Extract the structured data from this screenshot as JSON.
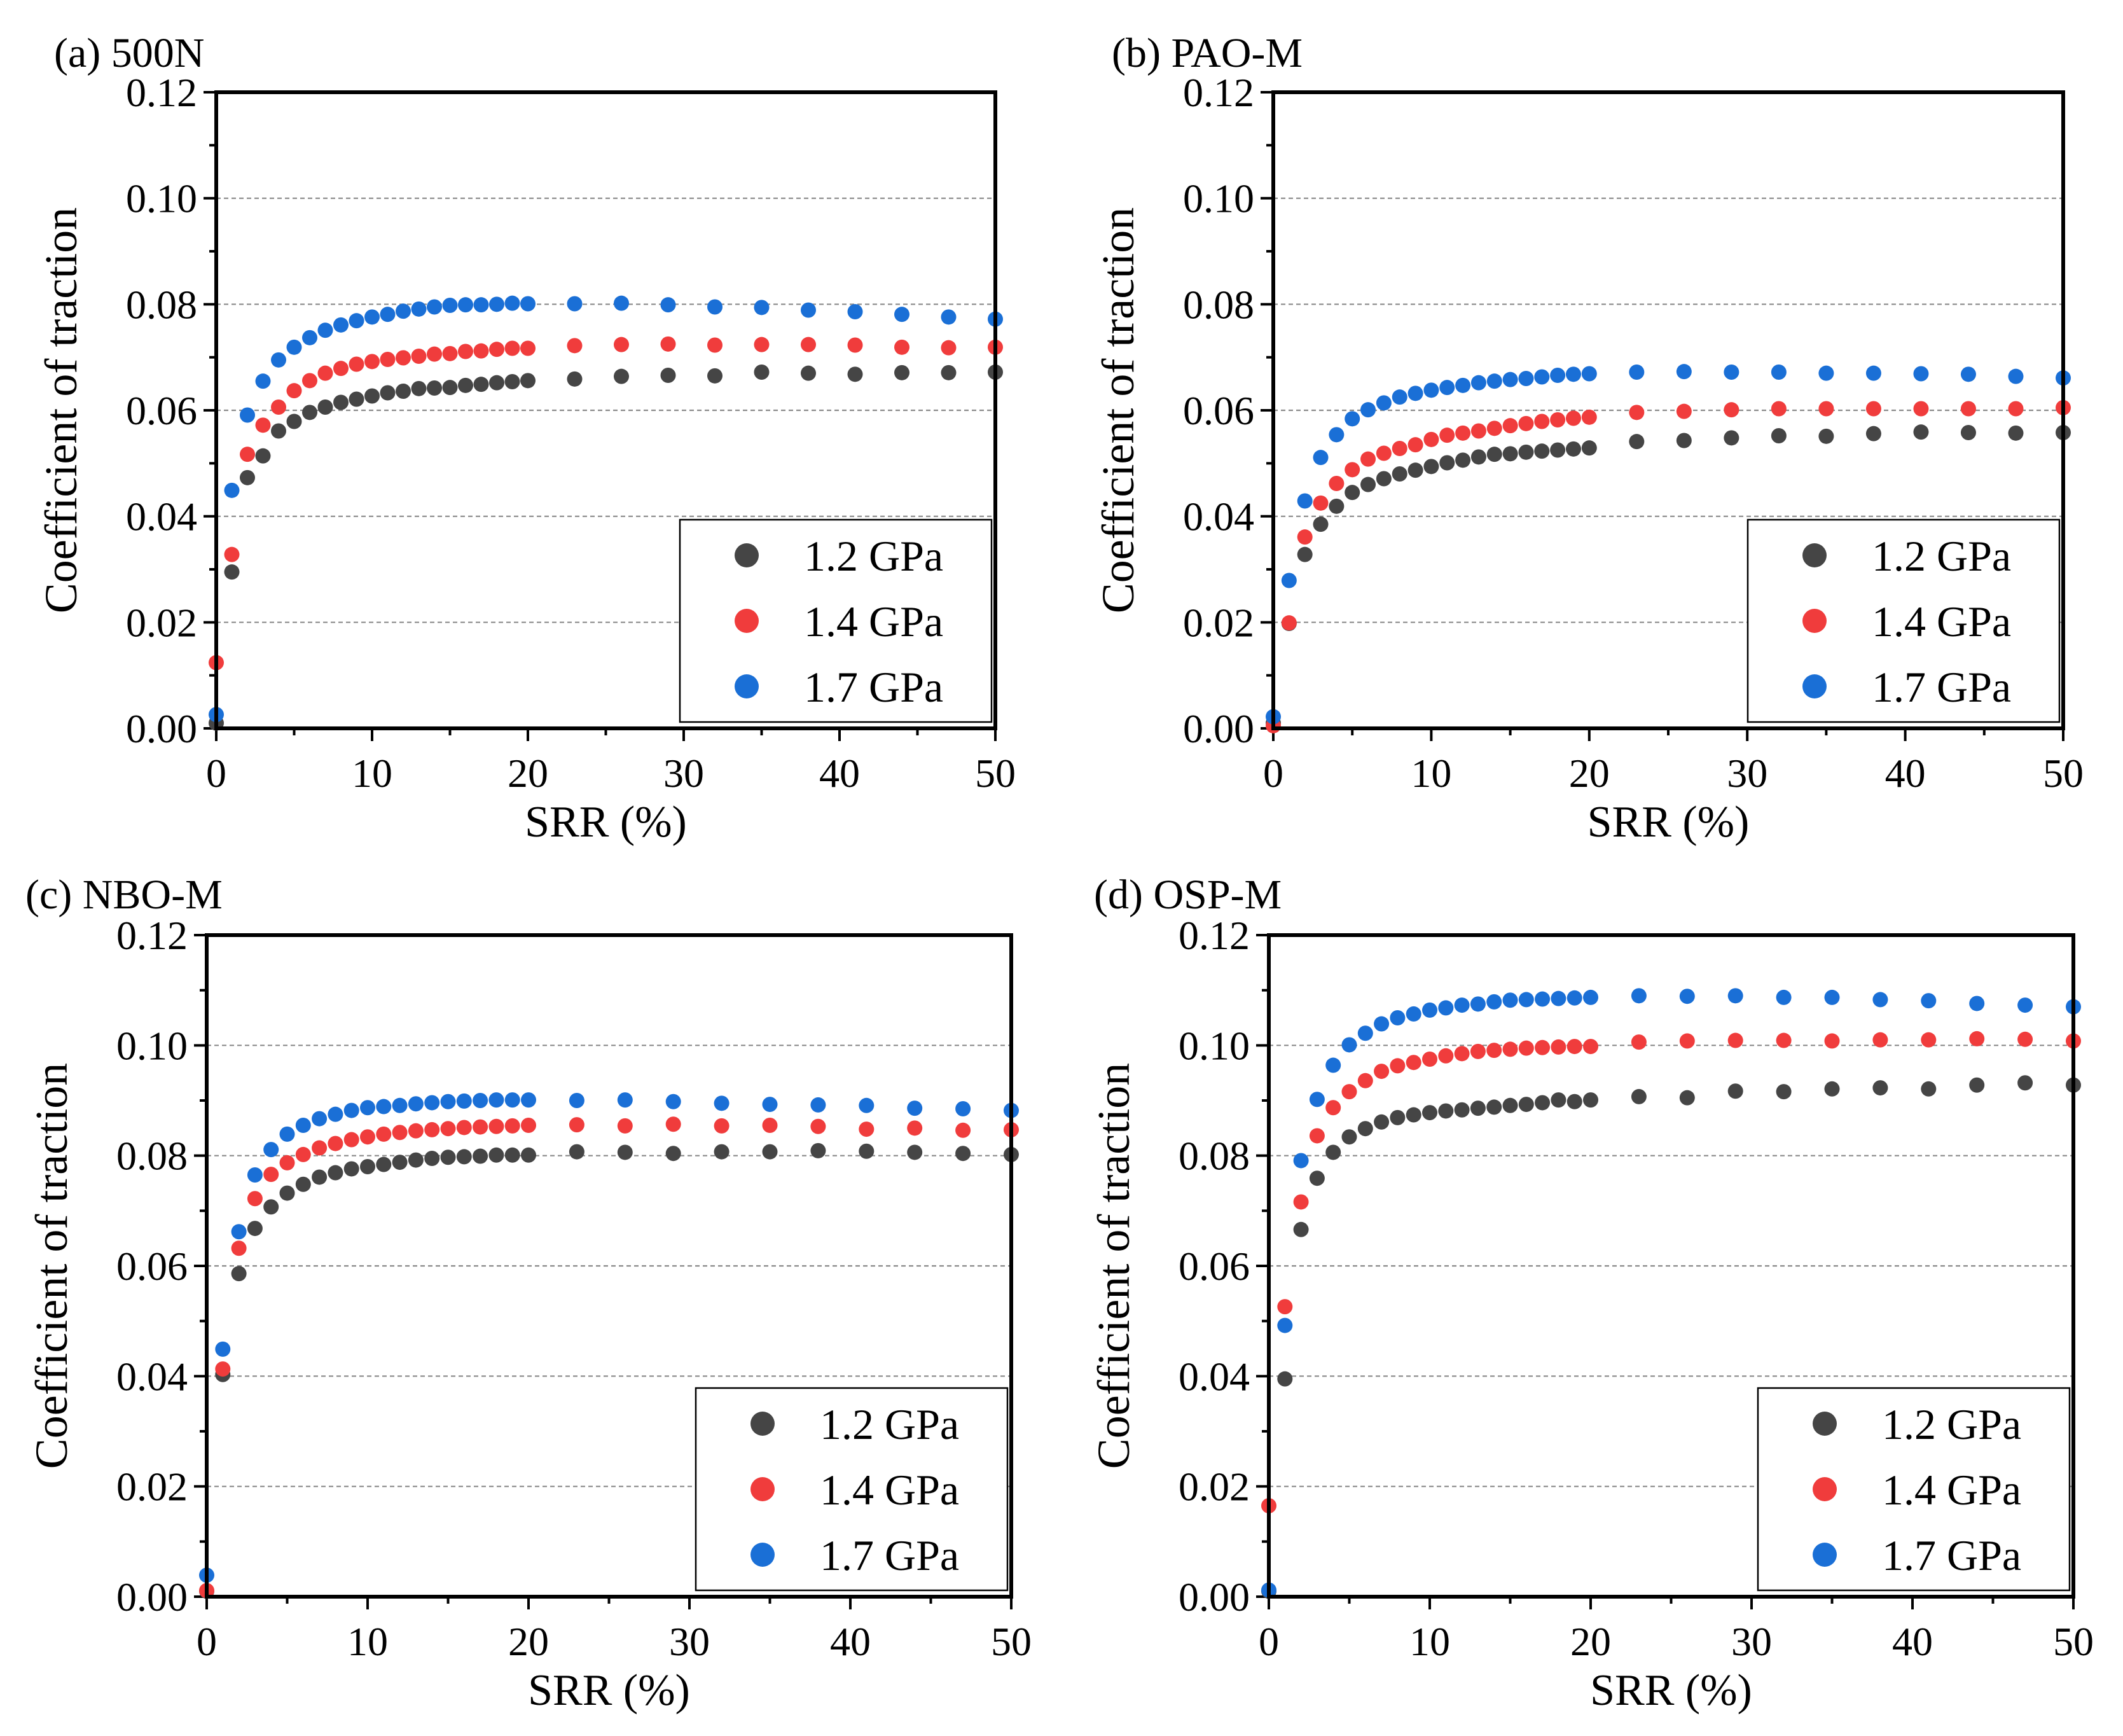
{
  "figure": {
    "type": "multi-panel scatter"
  },
  "colors": {
    "p12": "#454545",
    "p14": "#f03c3c",
    "p17": "#1a6fd6",
    "grid": "#8a8a8a",
    "frame": "#000000"
  },
  "chart_data": [
    {
      "type": "scatter",
      "id": "a",
      "title": "(a) 500N",
      "xlabel": "SRR (%)",
      "ylabel": "Coefficient of traction",
      "xlim": [
        0,
        50
      ],
      "ylim": [
        0,
        0.12
      ],
      "xticks": [
        "0",
        "10",
        "20",
        "30",
        "40",
        "50"
      ],
      "yticks": [
        "0.00",
        "0.02",
        "0.04",
        "0.06",
        "0.08",
        "0.10",
        "0.12"
      ],
      "grid": "horizontal dashed",
      "legend": "bottom-right",
      "x": [
        0,
        1,
        2,
        3,
        4,
        5,
        6,
        7,
        8,
        9,
        10,
        11,
        12,
        13,
        14,
        15,
        16,
        17,
        18,
        19,
        20,
        23,
        26,
        29,
        32,
        35,
        38,
        41,
        44,
        47,
        50
      ],
      "series": [
        {
          "name": "1.2 GPa",
          "color": "#454545",
          "values": [
            0.001,
            0.0295,
            0.0473,
            0.0514,
            0.0561,
            0.0579,
            0.0596,
            0.0606,
            0.0615,
            0.0621,
            0.0627,
            0.0633,
            0.0636,
            0.0641,
            0.0642,
            0.0643,
            0.0647,
            0.0649,
            0.0652,
            0.0654,
            0.0656,
            0.0659,
            0.0664,
            0.0666,
            0.0665,
            0.0672,
            0.067,
            0.0668,
            0.0671,
            0.0671,
            0.0672
          ]
        },
        {
          "name": "1.4 GPa",
          "color": "#f03c3c",
          "values": [
            0.0124,
            0.0328,
            0.0517,
            0.0572,
            0.0606,
            0.0637,
            0.0656,
            0.067,
            0.0679,
            0.0687,
            0.0692,
            0.0696,
            0.0699,
            0.0702,
            0.0706,
            0.0707,
            0.0711,
            0.0712,
            0.0715,
            0.0717,
            0.0717,
            0.0722,
            0.0724,
            0.0725,
            0.0723,
            0.0724,
            0.0724,
            0.0723,
            0.0719,
            0.0718,
            0.0719
          ]
        },
        {
          "name": "1.7 GPa",
          "color": "#1a6fd6",
          "values": [
            0.0026,
            0.0449,
            0.0591,
            0.0655,
            0.0695,
            0.0719,
            0.0737,
            0.0751,
            0.0761,
            0.0769,
            0.0776,
            0.0781,
            0.0787,
            0.0791,
            0.0795,
            0.0798,
            0.0799,
            0.0799,
            0.08,
            0.0802,
            0.0801,
            0.0801,
            0.0802,
            0.0799,
            0.0795,
            0.0794,
            0.0789,
            0.0786,
            0.0781,
            0.0776,
            0.0772
          ]
        }
      ]
    },
    {
      "type": "scatter",
      "id": "b",
      "title": "(b) PAO-M",
      "xlabel": "SRR (%)",
      "ylabel": "Coefficient of traction",
      "xlim": [
        0,
        50
      ],
      "ylim": [
        0,
        0.12
      ],
      "xticks": [
        "0",
        "10",
        "20",
        "30",
        "40",
        "50"
      ],
      "yticks": [
        "0.00",
        "0.02",
        "0.04",
        "0.06",
        "0.08",
        "0.10",
        "0.12"
      ],
      "grid": "horizontal dashed",
      "legend": "bottom-right",
      "x": [
        0,
        1,
        2,
        3,
        4,
        5,
        6,
        7,
        8,
        9,
        10,
        11,
        12,
        13,
        14,
        15,
        16,
        17,
        18,
        19,
        20,
        23,
        26,
        29,
        32,
        35,
        38,
        41,
        44,
        47,
        50
      ],
      "series": [
        {
          "name": "1.2 GPa",
          "color": "#454545",
          "values": [
            0.001,
            0.0198,
            0.0328,
            0.0385,
            0.0419,
            0.0445,
            0.046,
            0.0471,
            0.048,
            0.0487,
            0.0494,
            0.0501,
            0.0506,
            0.0512,
            0.0517,
            0.0518,
            0.0521,
            0.0523,
            0.0525,
            0.0527,
            0.0529,
            0.0541,
            0.0543,
            0.0548,
            0.0552,
            0.0551,
            0.0556,
            0.0559,
            0.0558,
            0.0557,
            0.0558
          ]
        },
        {
          "name": "1.4 GPa",
          "color": "#f03c3c",
          "values": [
            0.0005,
            0.0199,
            0.0361,
            0.0425,
            0.0462,
            0.0488,
            0.0508,
            0.0519,
            0.0528,
            0.0535,
            0.0545,
            0.0553,
            0.0557,
            0.0561,
            0.0566,
            0.0571,
            0.0575,
            0.0579,
            0.0582,
            0.0585,
            0.0587,
            0.0596,
            0.0598,
            0.0601,
            0.0603,
            0.0603,
            0.0603,
            0.0603,
            0.0603,
            0.0603,
            0.0605
          ]
        },
        {
          "name": "1.7 GPa",
          "color": "#1a6fd6",
          "values": [
            0.0022,
            0.0279,
            0.0429,
            0.0511,
            0.0554,
            0.0584,
            0.0601,
            0.0614,
            0.0625,
            0.0632,
            0.0638,
            0.0643,
            0.0647,
            0.0652,
            0.0655,
            0.0658,
            0.066,
            0.0663,
            0.0666,
            0.0668,
            0.0669,
            0.0672,
            0.0673,
            0.0672,
            0.0672,
            0.067,
            0.067,
            0.0669,
            0.0668,
            0.0664,
            0.0661
          ]
        }
      ]
    },
    {
      "type": "scatter",
      "id": "c",
      "title": "(c) NBO-M",
      "xlabel": "SRR (%)",
      "ylabel": "Coefficient of traction",
      "xlim": [
        0,
        50
      ],
      "ylim": [
        0,
        0.12
      ],
      "xticks": [
        "0",
        "10",
        "20",
        "30",
        "40",
        "50"
      ],
      "yticks": [
        "0.00",
        "0.02",
        "0.04",
        "0.06",
        "0.08",
        "0.10",
        "0.12"
      ],
      "grid": "horizontal dashed",
      "legend": "bottom-right",
      "x": [
        0,
        1,
        2,
        3,
        4,
        5,
        6,
        7,
        8,
        9,
        10,
        11,
        12,
        13,
        14,
        15,
        16,
        17,
        18,
        19,
        20,
        23,
        26,
        29,
        32,
        35,
        38,
        41,
        44,
        47,
        50
      ],
      "series": [
        {
          "name": "1.2 GPa",
          "color": "#454545",
          "values": [
            0.001,
            0.0403,
            0.0586,
            0.0668,
            0.0707,
            0.0732,
            0.0748,
            0.0761,
            0.0769,
            0.0776,
            0.078,
            0.0784,
            0.0788,
            0.0792,
            0.0795,
            0.0797,
            0.0798,
            0.0799,
            0.0801,
            0.0801,
            0.0801,
            0.0807,
            0.0806,
            0.0804,
            0.0807,
            0.0807,
            0.0809,
            0.0808,
            0.0806,
            0.0804,
            0.0802
          ]
        },
        {
          "name": "1.4 GPa",
          "color": "#f03c3c",
          "values": [
            0.0011,
            0.0413,
            0.0632,
            0.0722,
            0.0766,
            0.0787,
            0.0802,
            0.0814,
            0.0822,
            0.0829,
            0.0834,
            0.0839,
            0.0842,
            0.0845,
            0.0847,
            0.0849,
            0.0851,
            0.0852,
            0.0853,
            0.0854,
            0.0855,
            0.0856,
            0.0854,
            0.0857,
            0.0854,
            0.0855,
            0.0853,
            0.0848,
            0.085,
            0.0846,
            0.0847
          ]
        },
        {
          "name": "1.7 GPa",
          "color": "#1a6fd6",
          "values": [
            0.0039,
            0.0449,
            0.0662,
            0.0765,
            0.0811,
            0.0839,
            0.0855,
            0.0867,
            0.0875,
            0.0882,
            0.0887,
            0.0889,
            0.0891,
            0.0894,
            0.0896,
            0.0898,
            0.0899,
            0.09,
            0.0901,
            0.0901,
            0.0901,
            0.09,
            0.0901,
            0.0898,
            0.0895,
            0.0893,
            0.0892,
            0.0891,
            0.0886,
            0.0885,
            0.0882
          ]
        }
      ]
    },
    {
      "type": "scatter",
      "id": "d",
      "title": "(d) OSP-M",
      "xlabel": "SRR (%)",
      "ylabel": "Coefficient of traction",
      "xlim": [
        0,
        50
      ],
      "ylim": [
        0,
        0.12
      ],
      "xticks": [
        "0",
        "10",
        "20",
        "30",
        "40",
        "50"
      ],
      "yticks": [
        "0.00",
        "0.02",
        "0.04",
        "0.06",
        "0.08",
        "0.10",
        "0.12"
      ],
      "grid": "horizontal dashed",
      "legend": "bottom-right",
      "x": [
        0,
        1,
        2,
        3,
        4,
        5,
        6,
        7,
        8,
        9,
        10,
        11,
        12,
        13,
        14,
        15,
        16,
        17,
        18,
        19,
        20,
        23,
        26,
        29,
        32,
        35,
        38,
        41,
        44,
        47,
        50
      ],
      "series": [
        {
          "name": "1.2 GPa",
          "color": "#454545",
          "values": [
            0.001,
            0.0395,
            0.0666,
            0.0759,
            0.0806,
            0.0834,
            0.0849,
            0.0861,
            0.0869,
            0.0874,
            0.0878,
            0.0881,
            0.0883,
            0.0886,
            0.0888,
            0.0891,
            0.0893,
            0.0896,
            0.0901,
            0.0898,
            0.0901,
            0.0907,
            0.0905,
            0.0917,
            0.0916,
            0.0921,
            0.0923,
            0.0921,
            0.0928,
            0.0932,
            0.0928
          ]
        },
        {
          "name": "1.4 GPa",
          "color": "#f03c3c",
          "values": [
            0.0165,
            0.0526,
            0.0716,
            0.0836,
            0.0887,
            0.0916,
            0.0936,
            0.0953,
            0.0963,
            0.0969,
            0.0975,
            0.0981,
            0.0985,
            0.0989,
            0.0991,
            0.0993,
            0.0995,
            0.0996,
            0.0997,
            0.0998,
            0.0998,
            0.1006,
            0.1008,
            0.1009,
            0.1009,
            0.1008,
            0.101,
            0.101,
            0.1012,
            0.1011,
            0.1008
          ]
        },
        {
          "name": "1.7 GPa",
          "color": "#1a6fd6",
          "values": [
            0.0012,
            0.0492,
            0.0791,
            0.0902,
            0.0964,
            0.1001,
            0.1022,
            0.1039,
            0.105,
            0.1057,
            0.1064,
            0.1068,
            0.1073,
            0.1075,
            0.1079,
            0.1082,
            0.1083,
            0.1084,
            0.1085,
            0.1086,
            0.1087,
            0.109,
            0.1089,
            0.109,
            0.1087,
            0.1087,
            0.1083,
            0.1081,
            0.1076,
            0.1073,
            0.107
          ]
        }
      ]
    }
  ]
}
